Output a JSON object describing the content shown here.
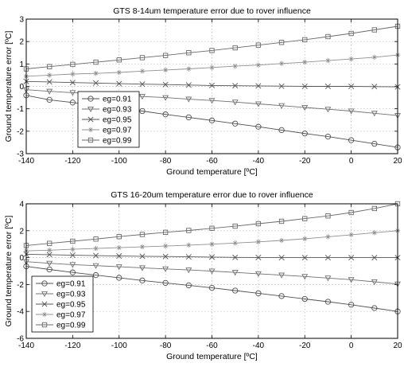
{
  "chart_data": [
    {
      "type": "line",
      "title": "GTS 8-14um temperature error due to rover influence",
      "xlabel": "Ground temperature [ºC]",
      "ylabel": "Ground temperature error [ºC]",
      "xlim": [
        -140,
        20
      ],
      "ylim": [
        -3,
        3
      ],
      "xticks": [
        -140,
        -120,
        -100,
        -80,
        -60,
        -40,
        -20,
        0,
        20
      ],
      "yticks": [
        -3,
        -2,
        -1,
        0,
        1,
        2,
        3
      ],
      "grid": true,
      "legend_position": "lower-left",
      "x": [
        -140,
        -130,
        -120,
        -110,
        -100,
        -90,
        -80,
        -70,
        -60,
        -50,
        -40,
        -30,
        -20,
        -10,
        0,
        10,
        20
      ],
      "series": [
        {
          "name": "eg=0.91",
          "marker": "circle",
          "color": "#505050",
          "values": [
            -0.4,
            -0.6,
            -0.72,
            -0.85,
            -0.98,
            -1.1,
            -1.25,
            -1.38,
            -1.52,
            -1.66,
            -1.8,
            -1.95,
            -2.1,
            -2.24,
            -2.4,
            -2.56,
            -2.72
          ]
        },
        {
          "name": "eg=0.93",
          "marker": "triangle-down",
          "color": "#707070",
          "values": [
            -0.15,
            -0.22,
            -0.28,
            -0.33,
            -0.38,
            -0.45,
            -0.5,
            -0.57,
            -0.63,
            -0.7,
            -0.78,
            -0.86,
            -0.94,
            -1.02,
            -1.1,
            -1.2,
            -1.3
          ]
        },
        {
          "name": "eg=0.95",
          "marker": "x",
          "color": "#555555",
          "values": [
            0.22,
            0.2,
            0.17,
            0.15,
            0.12,
            0.1,
            0.08,
            0.06,
            0.04,
            0.03,
            0.02,
            0.01,
            0.0,
            0.0,
            0.0,
            -0.01,
            -0.02
          ]
        },
        {
          "name": "eg=0.97",
          "marker": "star",
          "color": "#909090",
          "values": [
            0.45,
            0.5,
            0.55,
            0.58,
            0.62,
            0.68,
            0.73,
            0.78,
            0.84,
            0.9,
            0.95,
            1.02,
            1.08,
            1.15,
            1.22,
            1.3,
            1.4
          ]
        },
        {
          "name": "eg=0.99",
          "marker": "square",
          "color": "#6a6a6a",
          "values": [
            0.78,
            0.88,
            0.98,
            1.08,
            1.18,
            1.28,
            1.38,
            1.5,
            1.6,
            1.72,
            1.84,
            1.96,
            2.08,
            2.22,
            2.36,
            2.52,
            2.68
          ]
        }
      ]
    },
    {
      "type": "line",
      "title": "GTS 16-20um temperature error due to rover influence",
      "xlabel": "Ground temperature [ºC]",
      "ylabel": "Ground temperature error [ºC]",
      "xlim": [
        -140,
        20
      ],
      "ylim": [
        -6,
        4
      ],
      "xticks": [
        -140,
        -120,
        -100,
        -80,
        -60,
        -40,
        -20,
        0,
        20
      ],
      "yticks": [
        -6,
        -4,
        -2,
        0,
        2,
        4
      ],
      "grid": true,
      "legend_position": "lower-left",
      "x": [
        -140,
        -130,
        -120,
        -110,
        -100,
        -90,
        -80,
        -70,
        -60,
        -50,
        -40,
        -30,
        -20,
        -10,
        0,
        10,
        20
      ],
      "series": [
        {
          "name": "eg=0.91",
          "marker": "circle",
          "color": "#505050",
          "values": [
            -0.65,
            -0.88,
            -1.1,
            -1.3,
            -1.5,
            -1.7,
            -1.88,
            -2.06,
            -2.25,
            -2.45,
            -2.65,
            -2.86,
            -3.07,
            -3.28,
            -3.5,
            -3.75,
            -4.0
          ]
        },
        {
          "name": "eg=0.93",
          "marker": "triangle-down",
          "color": "#707070",
          "values": [
            -0.3,
            -0.42,
            -0.52,
            -0.6,
            -0.68,
            -0.76,
            -0.84,
            -0.92,
            -1.0,
            -1.1,
            -1.2,
            -1.3,
            -1.4,
            -1.52,
            -1.64,
            -1.8,
            -1.96
          ]
        },
        {
          "name": "eg=0.95",
          "marker": "x",
          "color": "#555555",
          "values": [
            0.25,
            0.22,
            0.18,
            0.15,
            0.12,
            0.1,
            0.08,
            0.06,
            0.04,
            0.02,
            0.01,
            0.0,
            0.0,
            0.0,
            0.0,
            0.0,
            0.0
          ]
        },
        {
          "name": "eg=0.97",
          "marker": "star",
          "color": "#909090",
          "values": [
            0.5,
            0.55,
            0.62,
            0.68,
            0.74,
            0.8,
            0.86,
            0.93,
            1.0,
            1.08,
            1.17,
            1.28,
            1.4,
            1.55,
            1.7,
            1.85,
            2.0
          ]
        },
        {
          "name": "eg=0.99",
          "marker": "square",
          "color": "#6a6a6a",
          "values": [
            0.9,
            1.06,
            1.22,
            1.38,
            1.56,
            1.72,
            1.88,
            2.02,
            2.18,
            2.34,
            2.52,
            2.7,
            2.9,
            3.1,
            3.35,
            3.65,
            4.0
          ]
        }
      ]
    }
  ]
}
